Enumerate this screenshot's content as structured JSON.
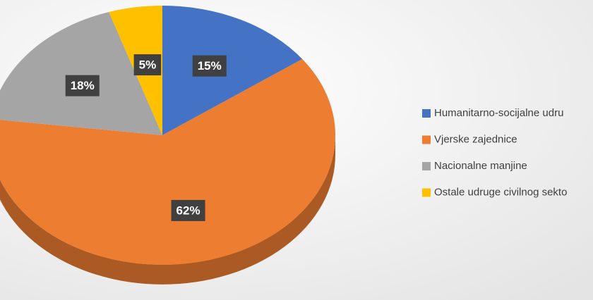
{
  "chart_data": {
    "type": "pie",
    "categories": [
      "Humanitarno-socijalne udru",
      "Vjerske zajednice",
      "Nacionalne manjine",
      "Ostale udruge civilnog sekto"
    ],
    "values": [
      15,
      62,
      18,
      5
    ],
    "value_labels": [
      "15%",
      "62%",
      "18%",
      "5%"
    ],
    "colors": [
      "#4472c4",
      "#ed7d31",
      "#a5a5a5",
      "#ffc000"
    ],
    "legend": "right"
  }
}
